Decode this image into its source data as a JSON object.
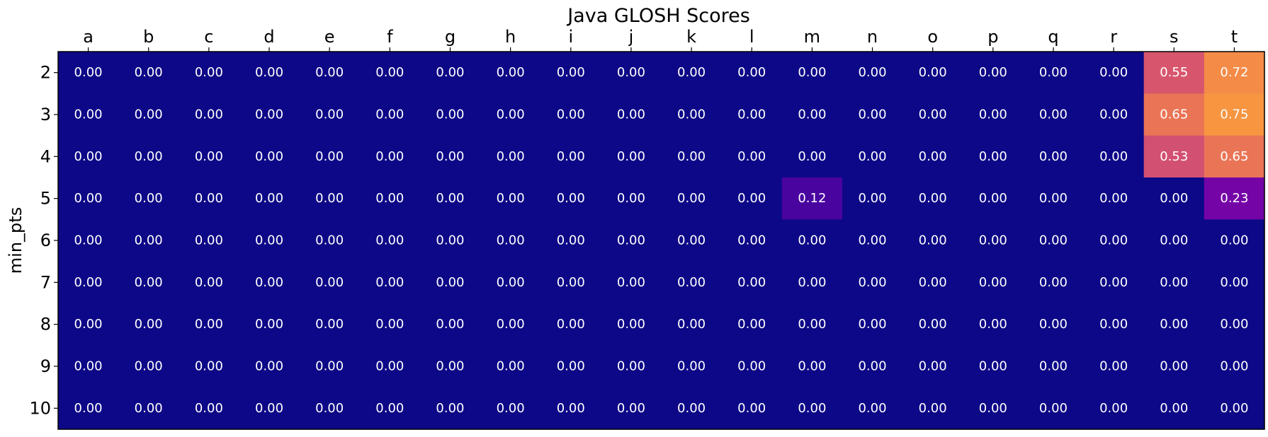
{
  "chart_data": {
    "type": "heatmap",
    "title": "Java GLOSH Scores",
    "xlabel": "",
    "ylabel": "min_pts",
    "x_tick_position": "top",
    "colormap": "plasma",
    "vmin": 0,
    "vmax": 1,
    "value_format": "0.00",
    "grid": false,
    "legend": "none",
    "x": [
      "a",
      "b",
      "c",
      "d",
      "e",
      "f",
      "g",
      "h",
      "i",
      "j",
      "k",
      "l",
      "m",
      "n",
      "o",
      "p",
      "q",
      "r",
      "s",
      "t"
    ],
    "y": [
      "2",
      "3",
      "4",
      "5",
      "6",
      "7",
      "8",
      "9",
      "10"
    ],
    "values": [
      [
        0,
        0,
        0,
        0,
        0,
        0,
        0,
        0,
        0,
        0,
        0,
        0,
        0,
        0,
        0,
        0,
        0,
        0,
        0.55,
        0.72
      ],
      [
        0,
        0,
        0,
        0,
        0,
        0,
        0,
        0,
        0,
        0,
        0,
        0,
        0,
        0,
        0,
        0,
        0,
        0,
        0.65,
        0.75
      ],
      [
        0,
        0,
        0,
        0,
        0,
        0,
        0,
        0,
        0,
        0,
        0,
        0,
        0,
        0,
        0,
        0,
        0,
        0,
        0.53,
        0.65
      ],
      [
        0,
        0,
        0,
        0,
        0,
        0,
        0,
        0,
        0,
        0,
        0,
        0,
        0.12,
        0,
        0,
        0,
        0,
        0,
        0,
        0.23
      ],
      [
        0,
        0,
        0,
        0,
        0,
        0,
        0,
        0,
        0,
        0,
        0,
        0,
        0,
        0,
        0,
        0,
        0,
        0,
        0,
        0
      ],
      [
        0,
        0,
        0,
        0,
        0,
        0,
        0,
        0,
        0,
        0,
        0,
        0,
        0,
        0,
        0,
        0,
        0,
        0,
        0,
        0
      ],
      [
        0,
        0,
        0,
        0,
        0,
        0,
        0,
        0,
        0,
        0,
        0,
        0,
        0,
        0,
        0,
        0,
        0,
        0,
        0,
        0
      ],
      [
        0,
        0,
        0,
        0,
        0,
        0,
        0,
        0,
        0,
        0,
        0,
        0,
        0,
        0,
        0,
        0,
        0,
        0,
        0,
        0
      ],
      [
        0,
        0,
        0,
        0,
        0,
        0,
        0,
        0,
        0,
        0,
        0,
        0,
        0,
        0,
        0,
        0,
        0,
        0,
        0,
        0
      ]
    ]
  }
}
